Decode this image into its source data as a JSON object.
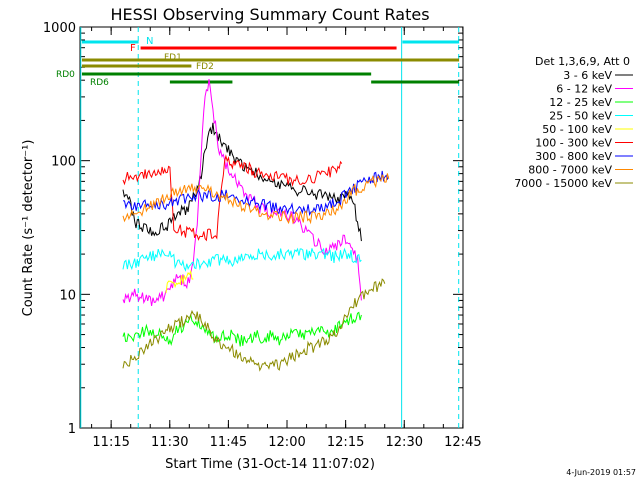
{
  "chart_data": {
    "type": "line",
    "title": "HESSI Observing Summary Count Rates",
    "xlabel": "Start Time (31-Oct-14 11:07:02)",
    "ylabel": "Count Rate (s⁻¹ detector⁻¹)",
    "y_scale": "log",
    "ylim": [
      1,
      1000
    ],
    "x_domain_minutes": [
      0,
      98
    ],
    "x_ticks": [
      {
        "label": "11:15",
        "min": 7.97
      },
      {
        "label": "11:30",
        "min": 22.97
      },
      {
        "label": "11:45",
        "min": 37.97
      },
      {
        "label": "12:00",
        "min": 52.97
      },
      {
        "label": "12:15",
        "min": 67.97
      },
      {
        "label": "12:30",
        "min": 82.97
      },
      {
        "label": "12:45",
        "min": 97.97
      }
    ],
    "y_ticks": [
      {
        "label": "1",
        "value": 1
      },
      {
        "label": "10",
        "value": 10
      },
      {
        "label": "100",
        "value": 100
      },
      {
        "label": "1000",
        "value": 1000
      }
    ],
    "legend_header": "Det 1,3,6,9, Att 0",
    "legend_placement": "right",
    "series": [
      {
        "name": "3 - 6 keV",
        "color": "#000000",
        "points": [
          [
            11,
            55
          ],
          [
            12,
            58
          ],
          [
            14,
            35
          ],
          [
            16,
            32
          ],
          [
            18,
            30
          ],
          [
            20,
            30
          ],
          [
            22,
            32
          ],
          [
            24,
            38
          ],
          [
            26,
            42
          ],
          [
            28,
            45
          ],
          [
            30,
            60
          ],
          [
            31,
            80
          ],
          [
            32,
            120
          ],
          [
            33,
            160
          ],
          [
            34,
            175
          ],
          [
            35,
            160
          ],
          [
            36,
            140
          ],
          [
            38,
            120
          ],
          [
            40,
            100
          ],
          [
            42,
            90
          ],
          [
            45,
            80
          ],
          [
            48,
            72
          ],
          [
            50,
            70
          ],
          [
            53,
            65
          ],
          [
            56,
            60
          ],
          [
            59,
            58
          ],
          [
            62,
            55
          ],
          [
            65,
            54
          ],
          [
            67,
            52
          ],
          [
            69,
            55
          ],
          [
            70,
            50
          ],
          [
            71,
            35
          ],
          [
            72,
            25
          ]
        ]
      },
      {
        "name": "6 - 12 keV",
        "color": "#ff00ff",
        "points": [
          [
            11,
            9
          ],
          [
            12,
            9
          ],
          [
            14,
            10
          ],
          [
            16,
            9.5
          ],
          [
            18,
            9
          ],
          [
            20,
            9
          ],
          [
            22,
            10
          ],
          [
            24,
            12
          ],
          [
            25,
            14
          ],
          [
            26,
            13
          ],
          [
            28,
            12
          ],
          [
            30,
            30
          ],
          [
            31,
            120
          ],
          [
            32,
            300
          ],
          [
            33,
            380
          ],
          [
            34,
            250
          ],
          [
            35,
            150
          ],
          [
            36,
            110
          ],
          [
            38,
            85
          ],
          [
            40,
            70
          ],
          [
            42,
            58
          ],
          [
            44,
            50
          ],
          [
            46,
            45
          ],
          [
            48,
            42
          ],
          [
            51,
            40
          ],
          [
            54,
            38
          ],
          [
            57,
            32
          ],
          [
            60,
            25
          ],
          [
            62,
            22
          ],
          [
            64,
            22
          ],
          [
            66,
            24
          ],
          [
            67,
            26
          ],
          [
            68,
            25
          ],
          [
            69,
            22
          ],
          [
            71,
            18
          ],
          [
            72,
            9
          ]
        ]
      },
      {
        "name": "12 - 25 keV",
        "color": "#00ff00",
        "points": [
          [
            11,
            5
          ],
          [
            13,
            4.5
          ],
          [
            15,
            5
          ],
          [
            17,
            5.5
          ],
          [
            19,
            5
          ],
          [
            21,
            5
          ],
          [
            23,
            4.5
          ],
          [
            25,
            5.5
          ],
          [
            27,
            6
          ],
          [
            29,
            6.5
          ],
          [
            31,
            5.5
          ],
          [
            33,
            5
          ],
          [
            35,
            4.5
          ],
          [
            37,
            5
          ],
          [
            39,
            5
          ],
          [
            41,
            4.5
          ],
          [
            43,
            4.5
          ],
          [
            45,
            5
          ],
          [
            47,
            4.5
          ],
          [
            49,
            5
          ],
          [
            51,
            4.5
          ],
          [
            53,
            5
          ],
          [
            55,
            5
          ],
          [
            57,
            5
          ],
          [
            59,
            5
          ],
          [
            61,
            5.5
          ],
          [
            63,
            5
          ],
          [
            65,
            5.5
          ],
          [
            67,
            6
          ],
          [
            69,
            6.5
          ],
          [
            71,
            7
          ],
          [
            72,
            7
          ]
        ]
      },
      {
        "name": "25 - 50 keV",
        "color": "#00ffff",
        "points": [
          [
            11,
            17
          ],
          [
            14,
            17
          ],
          [
            16,
            18
          ],
          [
            18,
            19
          ],
          [
            20,
            20
          ],
          [
            22,
            21
          ],
          [
            23,
            20
          ],
          [
            24,
            18
          ],
          [
            25,
            17
          ],
          [
            27,
            16
          ],
          [
            29,
            17
          ],
          [
            31,
            17
          ],
          [
            33,
            17
          ],
          [
            35,
            18
          ],
          [
            37,
            18
          ],
          [
            39,
            18
          ],
          [
            41,
            19
          ],
          [
            43,
            19
          ],
          [
            45,
            20
          ],
          [
            47,
            20
          ],
          [
            49,
            20
          ],
          [
            51,
            20
          ],
          [
            53,
            20
          ],
          [
            55,
            20
          ],
          [
            57,
            20
          ],
          [
            59,
            20
          ],
          [
            61,
            20
          ],
          [
            63,
            20
          ],
          [
            65,
            19
          ],
          [
            67,
            20
          ],
          [
            69,
            20
          ],
          [
            71,
            18
          ],
          [
            72,
            18
          ]
        ]
      },
      {
        "name": "50 - 100 keV",
        "color": "#ffff00",
        "points": [
          [
            22,
            11
          ],
          [
            24,
            12
          ],
          [
            26,
            13
          ],
          [
            28,
            14
          ],
          [
            29,
            13
          ]
        ]
      },
      {
        "name": "100 - 300 keV",
        "color": "#ff0000",
        "points": [
          [
            11,
            74
          ],
          [
            14,
            76
          ],
          [
            16,
            78
          ],
          [
            18,
            80
          ],
          [
            20,
            80
          ],
          [
            22,
            82
          ],
          [
            23,
            85
          ],
          [
            24,
            32
          ],
          [
            26,
            30
          ],
          [
            28,
            29
          ],
          [
            30,
            28
          ],
          [
            32,
            28
          ],
          [
            33,
            28
          ],
          [
            35,
            29
          ],
          [
            37,
            100
          ],
          [
            39,
            96
          ],
          [
            41,
            92
          ],
          [
            43,
            88
          ],
          [
            45,
            82
          ],
          [
            48,
            78
          ],
          [
            51,
            74
          ],
          [
            54,
            72
          ],
          [
            57,
            72
          ],
          [
            60,
            75
          ],
          [
            63,
            80
          ],
          [
            65,
            85
          ],
          [
            67,
            95
          ]
        ]
      },
      {
        "name": "300 - 800 keV",
        "color": "#0000ff",
        "points": [
          [
            11,
            46
          ],
          [
            14,
            46
          ],
          [
            17,
            46
          ],
          [
            20,
            47
          ],
          [
            23,
            48
          ],
          [
            25,
            50
          ],
          [
            28,
            53
          ],
          [
            31,
            55
          ],
          [
            34,
            55
          ],
          [
            37,
            55
          ],
          [
            40,
            53
          ],
          [
            43,
            50
          ],
          [
            46,
            47
          ],
          [
            49,
            45
          ],
          [
            52,
            44
          ],
          [
            55,
            43
          ],
          [
            58,
            43
          ],
          [
            61,
            44
          ],
          [
            64,
            46
          ],
          [
            66,
            50
          ],
          [
            68,
            55
          ],
          [
            70,
            62
          ],
          [
            72,
            68
          ],
          [
            74,
            72
          ],
          [
            76,
            75
          ],
          [
            78,
            76
          ],
          [
            79,
            76
          ]
        ]
      },
      {
        "name": "800 - 7000 keV",
        "color": "#ff8800",
        "points": [
          [
            11,
            38
          ],
          [
            14,
            40
          ],
          [
            17,
            44
          ],
          [
            20,
            50
          ],
          [
            23,
            56
          ],
          [
            26,
            60
          ],
          [
            29,
            62
          ],
          [
            32,
            61
          ],
          [
            35,
            58
          ],
          [
            38,
            52
          ],
          [
            41,
            47
          ],
          [
            44,
            44
          ],
          [
            47,
            41
          ],
          [
            50,
            39
          ],
          [
            53,
            38
          ],
          [
            56,
            38
          ],
          [
            59,
            38
          ],
          [
            62,
            39
          ],
          [
            65,
            42
          ],
          [
            67,
            46
          ],
          [
            69,
            55
          ],
          [
            71,
            62
          ],
          [
            73,
            66
          ],
          [
            75,
            70
          ],
          [
            77,
            72
          ],
          [
            79,
            73
          ]
        ]
      },
      {
        "name": "7000 - 15000 keV",
        "color": "#8b8b00",
        "points": [
          [
            11,
            3
          ],
          [
            13,
            3.2
          ],
          [
            15,
            3.5
          ],
          [
            17,
            4
          ],
          [
            19,
            4.5
          ],
          [
            21,
            5
          ],
          [
            23,
            5.5
          ],
          [
            25,
            6
          ],
          [
            27,
            6.5
          ],
          [
            29,
            7
          ],
          [
            31,
            6.5
          ],
          [
            33,
            5.5
          ],
          [
            35,
            4.5
          ],
          [
            37,
            4
          ],
          [
            39,
            3.8
          ],
          [
            41,
            3.5
          ],
          [
            43,
            3.2
          ],
          [
            45,
            3
          ],
          [
            47,
            3
          ],
          [
            49,
            3
          ],
          [
            51,
            3
          ],
          [
            53,
            3.2
          ],
          [
            55,
            3.5
          ],
          [
            57,
            3.8
          ],
          [
            59,
            4
          ],
          [
            61,
            4.2
          ],
          [
            63,
            4.5
          ],
          [
            65,
            5
          ],
          [
            67,
            6
          ],
          [
            69,
            7.5
          ],
          [
            71,
            9
          ],
          [
            73,
            10
          ],
          [
            75,
            11
          ],
          [
            77,
            12
          ],
          [
            78,
            12
          ]
        ]
      }
    ],
    "vertical_markers": [
      {
        "min": 0.2,
        "color": "#00e5ee",
        "style": "solid"
      },
      {
        "min": 14.9,
        "color": "#00e5ee",
        "style": "dashed"
      },
      {
        "min": 82.3,
        "color": "#00e5ee",
        "style": "solid"
      },
      {
        "min": 96.9,
        "color": "#00e5ee",
        "style": "dashed"
      }
    ],
    "flag_labels": [
      {
        "text": "N",
        "color": "#00e5ee"
      },
      {
        "text": "F",
        "color": "#ff0000"
      },
      {
        "text": "FD1",
        "color": "#8b8b00"
      },
      {
        "text": "FD2",
        "color": "#8b8b00"
      },
      {
        "text": "RD0",
        "color": "#008000"
      },
      {
        "text": "RD6",
        "color": "#008000"
      }
    ],
    "flag_bars": [
      {
        "flag": "N",
        "color": "#00e5ee",
        "y": 42,
        "spans": [
          [
            0.5,
            15
          ],
          [
            82.5,
            97
          ]
        ]
      },
      {
        "flag": "F",
        "color": "#ff0000",
        "y": 48,
        "spans": [
          [
            15.5,
            81
          ]
        ]
      },
      {
        "flag": "FD1",
        "color": "#8b8b00",
        "y": 60,
        "spans": [
          [
            0.5,
            97
          ]
        ]
      },
      {
        "flag": "FD2",
        "color": "#8b8b00",
        "y": 66,
        "spans": [
          [
            0.5,
            28.5
          ]
        ]
      },
      {
        "flag": "RD0",
        "color": "#008000",
        "y": 74,
        "spans": [
          [
            0.5,
            74.5
          ]
        ]
      },
      {
        "flag": "RD6",
        "color": "#008000",
        "y": 82,
        "spans": [
          [
            23,
            39
          ],
          [
            74.5,
            97
          ]
        ]
      }
    ],
    "footer_date": "4-Jun-2019 01:57"
  }
}
